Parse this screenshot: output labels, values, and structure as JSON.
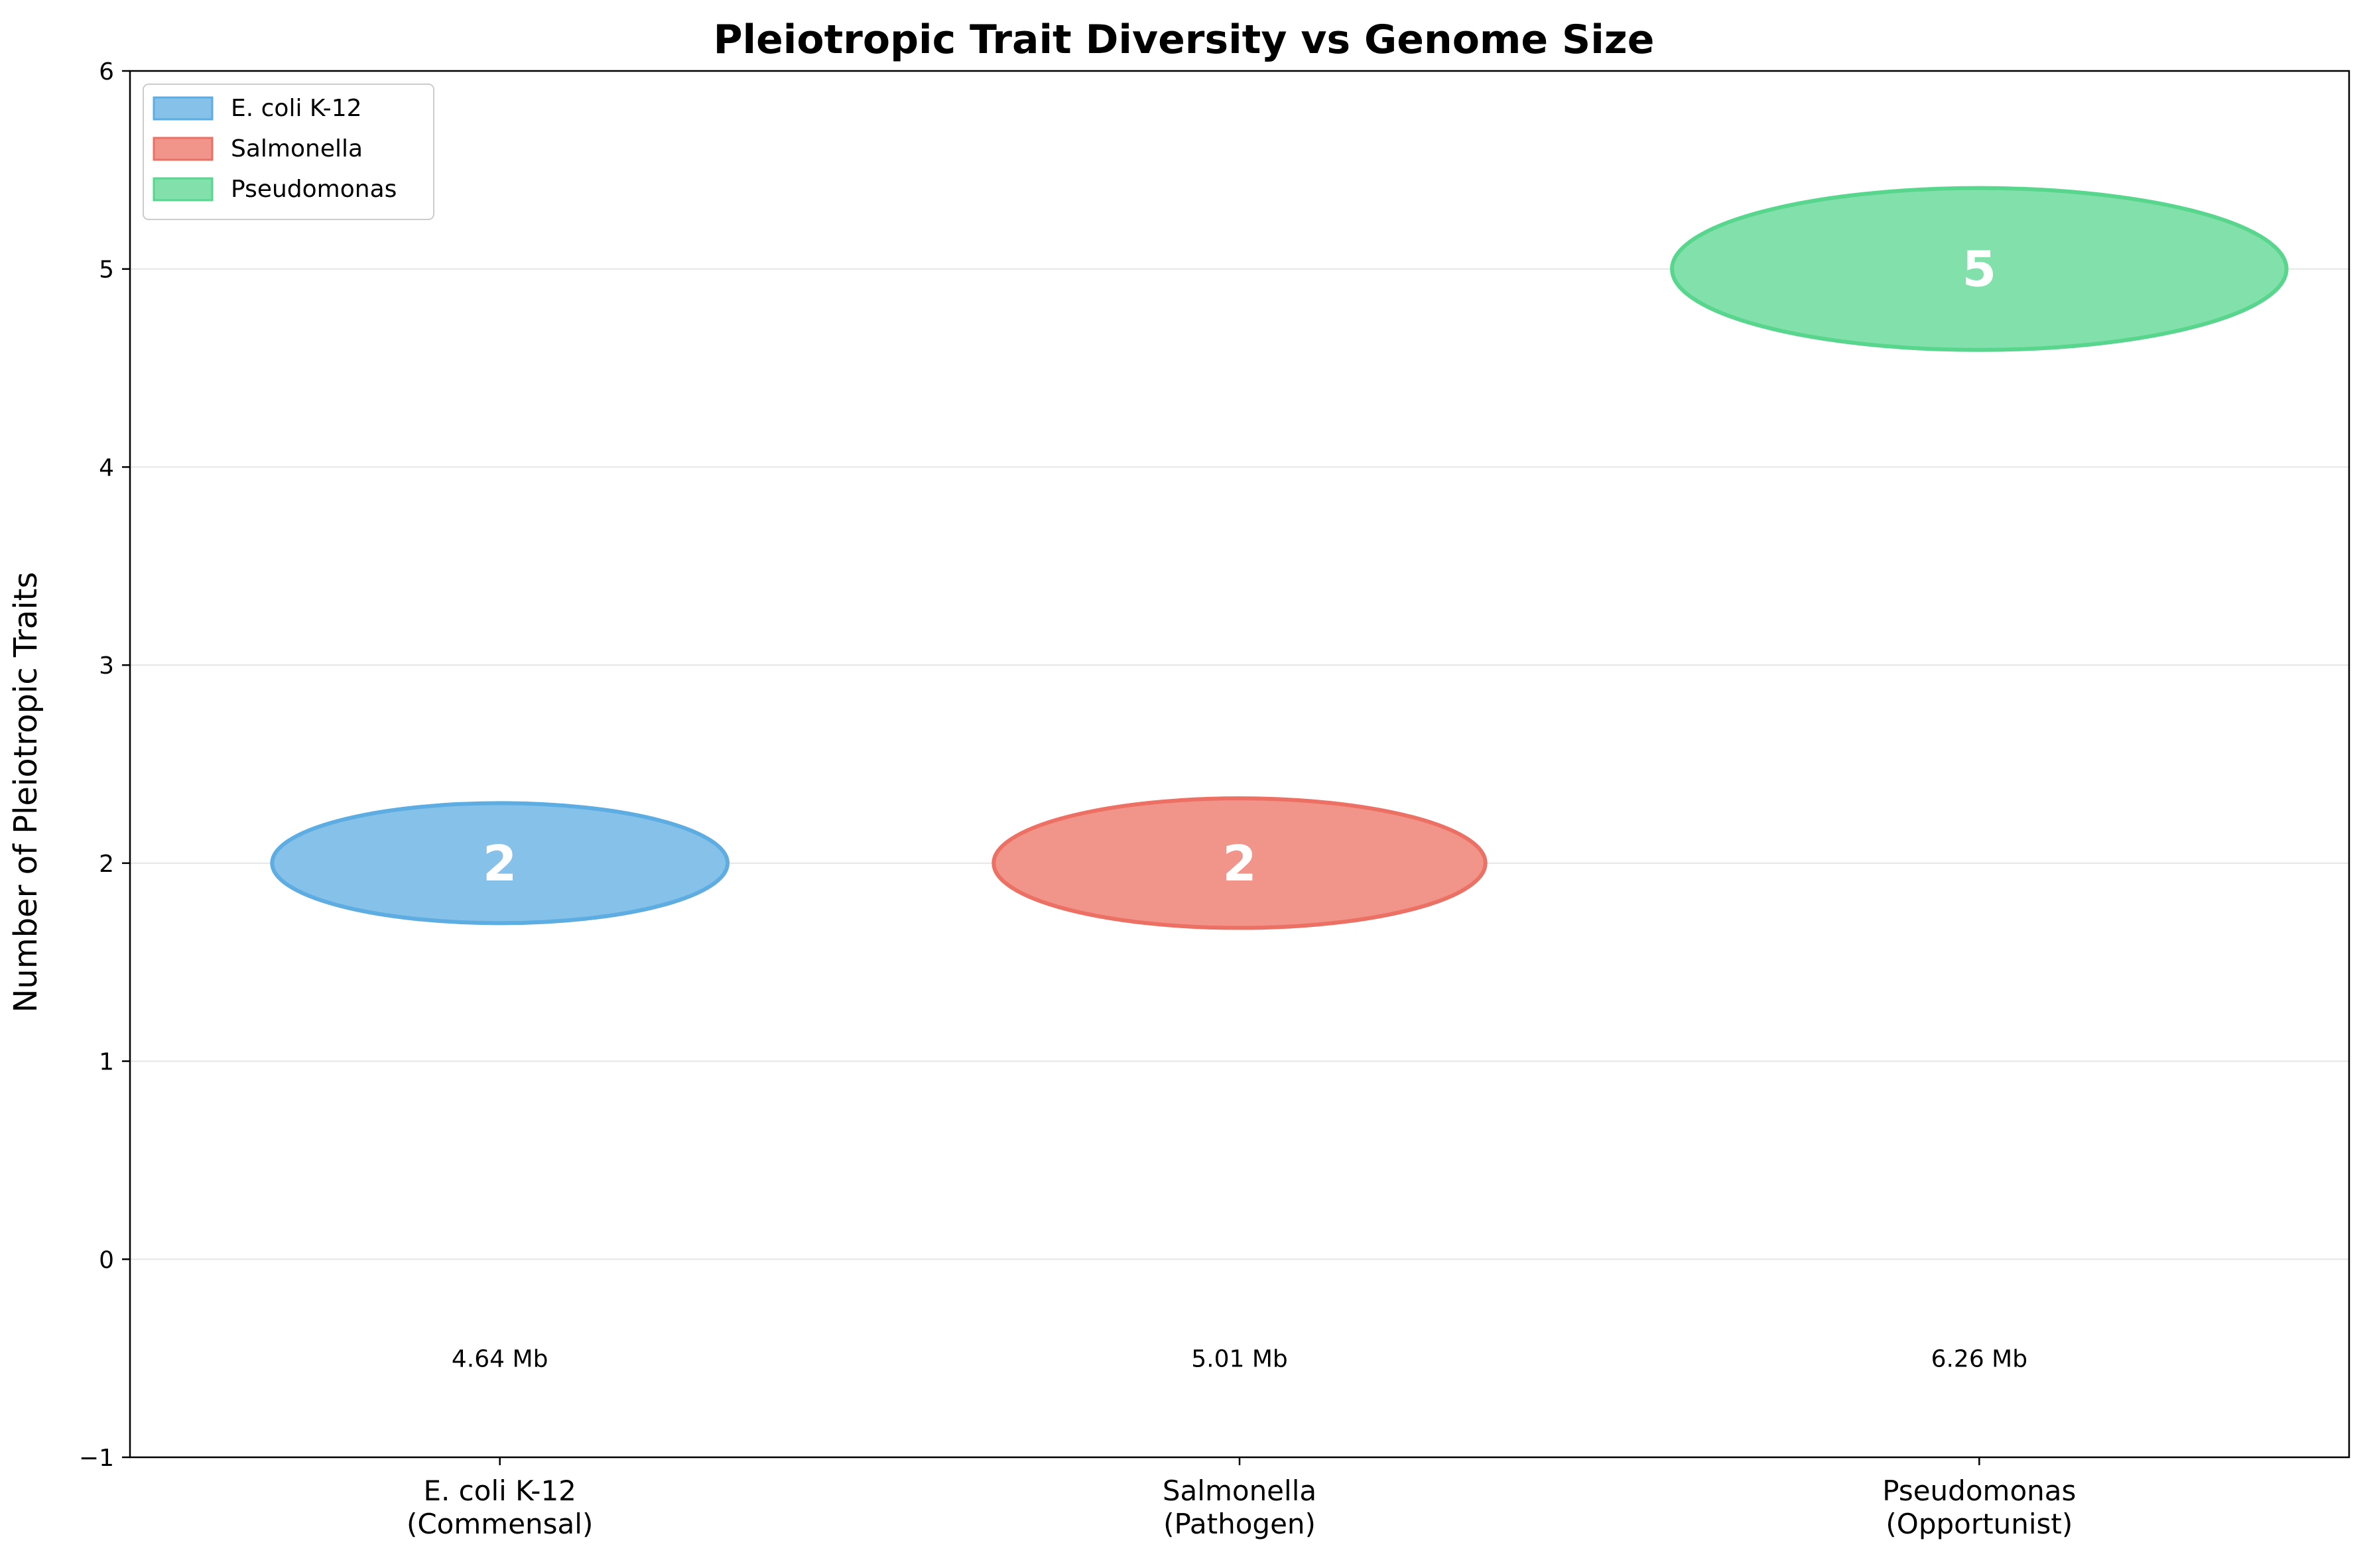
{
  "chart_data": {
    "type": "scatter",
    "title": "Pleiotropic Trait Diversity vs Genome Size",
    "xlabel": "",
    "ylabel": "Number of Pleiotropic Traits",
    "ylim": [
      -1,
      6
    ],
    "yticks": [
      -1,
      0,
      1,
      2,
      3,
      4,
      5,
      6
    ],
    "ytick_labels": [
      "−1",
      "0",
      "1",
      "2",
      "3",
      "4",
      "5",
      "6"
    ],
    "grid": "y",
    "legend_position": "top-left",
    "categories": [
      {
        "line1": "E. coli K-12",
        "line2": "(Commensal)"
      },
      {
        "line1": "Salmonella",
        "line2": "(Pathogen)"
      },
      {
        "line1": "Pseudomonas",
        "line2": "(Opportunist)"
      }
    ],
    "series": [
      {
        "name": "E. coli K-12",
        "value": 2,
        "value_label": "2",
        "genome_size_mb": 4.64,
        "genome_label": "4.64 Mb",
        "fill": "#85c1e9",
        "stroke": "#5dade2"
      },
      {
        "name": "Salmonella",
        "value": 2,
        "value_label": "2",
        "genome_size_mb": 5.01,
        "genome_label": "5.01 Mb",
        "fill": "#f1948a",
        "stroke": "#ec7063"
      },
      {
        "name": "Pseudomonas",
        "value": 5,
        "value_label": "5",
        "genome_size_mb": 6.26,
        "genome_label": "6.26 Mb",
        "fill": "#82e0aa",
        "stroke": "#58d68d"
      }
    ]
  }
}
